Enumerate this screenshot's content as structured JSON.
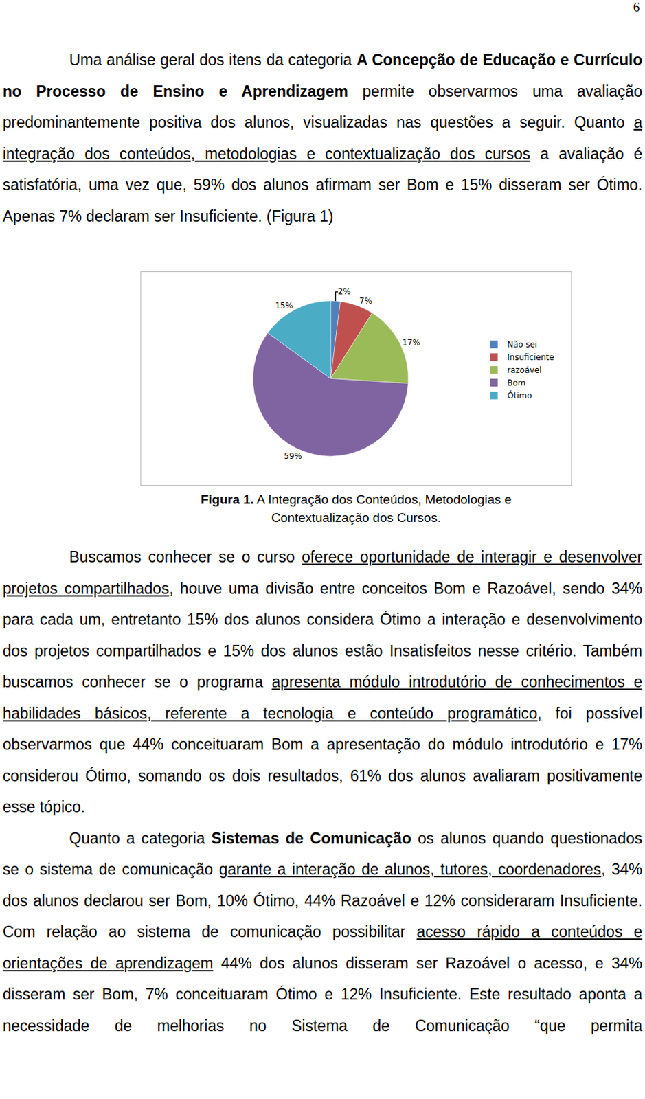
{
  "page_number": "6",
  "paragraphs": [
    [
      {
        "text": "Uma análise geral dos itens da categoria "
      },
      {
        "text": "A Concepção de Educação e Currículo no Processo de Ensino e Aprendizagem",
        "style": "bold"
      },
      {
        "text": " permite observarmos uma avaliação predominantemente positiva dos alunos, visualizadas nas questões a seguir. Quanto "
      },
      {
        "text": "a integração dos conteúdos, metodologias e contextualização dos cursos",
        "style": "underline"
      },
      {
        "text": " a avaliação é satisfatória, uma vez que, 59% dos alunos afirmam ser Bom e 15% disseram ser Ótimo. Apenas 7% declaram ser Insuficiente. (Figura 1)"
      }
    ],
    [
      {
        "text": "Buscamos conhecer se o curso "
      },
      {
        "text": "oferece oportunidade de interagir e desenvolver projetos compartilhados",
        "style": "underline"
      },
      {
        "text": ", houve uma divisão entre conceitos Bom e Razoável, sendo 34% para cada um, entretanto 15% dos alunos considera Ótimo a interação e desenvolvimento dos projetos compartilhados e 15% dos alunos estão Insatisfeitos nesse critério. Também buscamos conhecer se o programa "
      },
      {
        "text": "apresenta módulo introdutório de conhecimentos e habilidades básicos, referente a tecnologia e conteúdo programático,",
        "style": "underline"
      },
      {
        "text": " foi possível observarmos que 44% conceituaram Bom a apresentação do módulo introdutório e 17% considerou Ótimo, somando os dois resultados, 61% dos alunos avaliaram positivamente esse tópico."
      }
    ],
    [
      {
        "text": "Quanto a categoria "
      },
      {
        "text": "Sistemas de Comunicação",
        "style": "bold"
      },
      {
        "text": " os alunos quando questionados se o sistema de comunicação "
      },
      {
        "text": "garante a interação de alunos, tutores, coordenadores",
        "style": "underline"
      },
      {
        "text": ", 34% dos alunos declarou ser Bom, 10% Ótimo, 44% Razoável e 12% consideraram Insuficiente. Com relação ao sistema de comunicação possibilitar "
      },
      {
        "text": "acesso rápido a conteúdos e orientações de aprendizagem",
        "style": "underline"
      },
      {
        "text": " 44% dos alunos disseram ser Razoável o acesso, e 34% disseram ser Bom, 7% conceituaram Ótimo e 12% Insuficiente. Este resultado aponta a necessidade de melhorias no Sistema de Comunicação “que permita"
      }
    ]
  ],
  "figure_caption": [
    [
      {
        "text": "Figura 1.",
        "style": "bold"
      },
      {
        "text": " A Integração dos Conteúdos, Metodologias e"
      }
    ],
    [
      {
        "text": "Contextualização dos Cursos."
      }
    ]
  ],
  "chart_data": {
    "type": "pie",
    "categories": [
      "Não sei",
      "Insuficiente",
      "razoável",
      "Bom",
      "Ótimo"
    ],
    "values": [
      2,
      7,
      17,
      59,
      15
    ],
    "value_labels": [
      "2%",
      "7%",
      "17%",
      "59%",
      "15%"
    ],
    "colors": [
      "#4f81bd",
      "#c0504d",
      "#9bbb59",
      "#8064a2",
      "#4bacc6"
    ],
    "data_labels": true,
    "legend": "right"
  }
}
